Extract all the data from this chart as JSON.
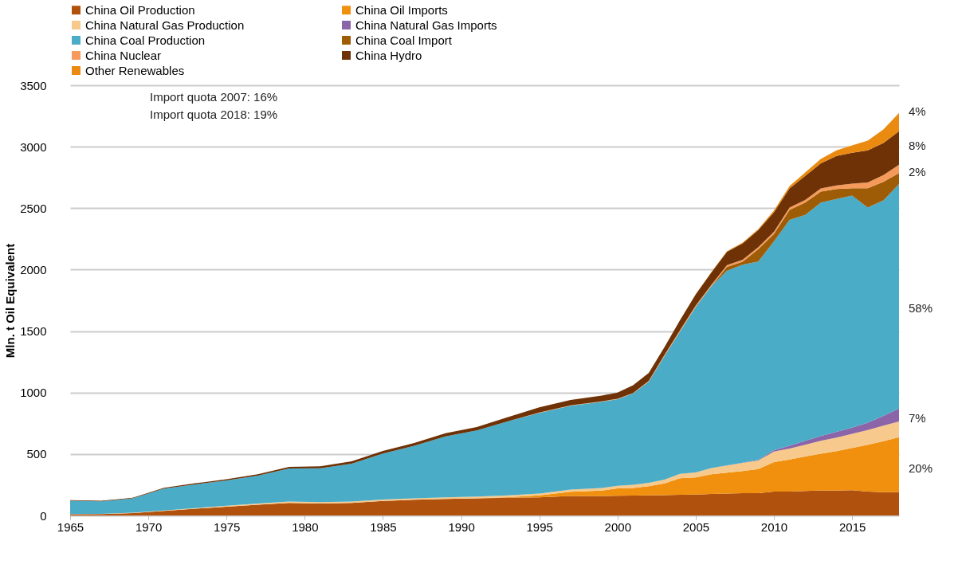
{
  "chart_data": {
    "type": "area",
    "stacked": true,
    "ylabel": "Mln. t Oil Equivalent",
    "x": [
      1965,
      1967,
      1969,
      1971,
      1973,
      1975,
      1977,
      1979,
      1981,
      1983,
      1985,
      1987,
      1989,
      1991,
      1993,
      1995,
      1997,
      1999,
      2000,
      2001,
      2002,
      2003,
      2004,
      2005,
      2006,
      2007,
      2008,
      2009,
      2010,
      2011,
      2012,
      2013,
      2014,
      2015,
      2016,
      2017,
      2018
    ],
    "series": [
      {
        "name": "China Oil Production",
        "color": "#b0520e",
        "values": [
          10,
          12,
          20,
          38,
          55,
          72,
          88,
          102,
          98,
          102,
          118,
          128,
          134,
          140,
          144,
          148,
          158,
          158,
          160,
          162,
          164,
          166,
          168,
          170,
          175,
          178,
          182,
          182,
          195,
          195,
          200,
          202,
          203,
          205,
          195,
          190,
          189
        ]
      },
      {
        "name": "China Oil Imports",
        "color": "#f0900e",
        "values": [
          0,
          0,
          0,
          0,
          0,
          0,
          0,
          0,
          0,
          0,
          0,
          0,
          0,
          0,
          5,
          15,
          35,
          45,
          60,
          62,
          75,
          95,
          135,
          140,
          160,
          170,
          180,
          195,
          240,
          260,
          280,
          300,
          320,
          345,
          380,
          415,
          448
        ]
      },
      {
        "name": "China Natural Gas Production",
        "color": "#f7c98c",
        "values": [
          1,
          1,
          2,
          3,
          5,
          8,
          10,
          12,
          11,
          11,
          11,
          12,
          13,
          14,
          15,
          16,
          18,
          20,
          22,
          25,
          27,
          30,
          35,
          40,
          50,
          58,
          65,
          70,
          85,
          90,
          95,
          105,
          110,
          115,
          120,
          125,
          128
        ]
      },
      {
        "name": "China Natural Gas Imports",
        "color": "#8c64a8",
        "values": [
          0,
          0,
          0,
          0,
          0,
          0,
          0,
          0,
          0,
          0,
          0,
          0,
          0,
          0,
          0,
          0,
          0,
          0,
          0,
          0,
          0,
          0,
          0,
          0,
          1,
          2,
          3,
          5,
          12,
          22,
          32,
          40,
          47,
          50,
          60,
          80,
          105
        ]
      },
      {
        "name": "China Coal Production",
        "color": "#4aacc6",
        "values": [
          109,
          102,
          117,
          177,
          193,
          205,
          226,
          268,
          275,
          308,
          375,
          427,
          496,
          538,
          602,
          655,
          682,
          703,
          704,
          744,
          823,
          1005,
          1160,
          1346,
          1479,
          1584,
          1610,
          1614,
          1698,
          1838,
          1838,
          1898,
          1895,
          1887,
          1750,
          1754,
          1826
        ]
      },
      {
        "name": "China Coal Import",
        "color": "#9e5c06",
        "values": [
          0,
          0,
          0,
          0,
          0,
          0,
          0,
          0,
          0,
          0,
          0,
          0,
          0,
          0,
          0,
          0,
          0,
          0,
          0,
          0,
          0,
          0,
          0,
          0,
          0,
          30,
          25,
          100,
          60,
          80,
          100,
          90,
          80,
          60,
          157,
          150,
          90
        ]
      },
      {
        "name": "China Nuclear",
        "color": "#f59a5a",
        "values": [
          0,
          0,
          0,
          0,
          0,
          0,
          0,
          0,
          0,
          0,
          0,
          0,
          0,
          0,
          0,
          3,
          3,
          3,
          4,
          4,
          6,
          10,
          11,
          12,
          12,
          14,
          16,
          16,
          17,
          20,
          22,
          25,
          30,
          38,
          48,
          56,
          67
        ]
      },
      {
        "name": "China Hydro",
        "color": "#6e3206",
        "values": [
          5,
          5,
          6,
          7,
          9,
          10,
          11,
          13,
          16,
          19,
          21,
          23,
          27,
          28,
          34,
          43,
          44,
          46,
          50,
          63,
          65,
          64,
          80,
          90,
          100,
          110,
          133,
          140,
          160,
          155,
          195,
          205,
          240,
          250,
          260,
          260,
          272
        ]
      },
      {
        "name": "Other Renewables",
        "color": "#ea8a10",
        "values": [
          0,
          0,
          0,
          0,
          0,
          0,
          0,
          0,
          0,
          0,
          0,
          0,
          0,
          0,
          0,
          0,
          0,
          0,
          0,
          0,
          0,
          0,
          1,
          2,
          3,
          4,
          6,
          8,
          13,
          20,
          28,
          35,
          45,
          60,
          80,
          110,
          150
        ]
      }
    ],
    "xlim": [
      1965,
      2018
    ],
    "xticks": [
      1965,
      1970,
      1975,
      1980,
      1985,
      1990,
      1995,
      2000,
      2005,
      2010,
      2015
    ],
    "ylim": [
      0,
      3500
    ],
    "yticks": [
      0,
      500,
      1000,
      1500,
      2000,
      2500,
      3000,
      3500
    ],
    "grid": "y",
    "legend": "top",
    "annotations": [
      "Import quota 2007: 16%",
      "Import quota 2018: 19%",
      "4%",
      "8%",
      "2%",
      "58%",
      "7%",
      "20%"
    ]
  }
}
